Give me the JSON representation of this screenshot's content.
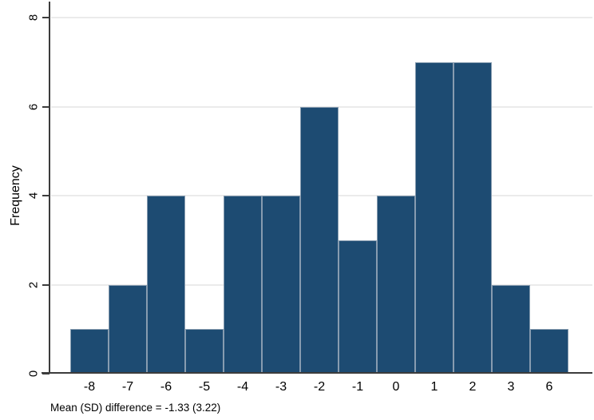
{
  "figure": {
    "ylabel": "Frequency",
    "caption": "Mean (SD) difference = -1.33 (3.22)"
  },
  "chart_data": {
    "type": "bar",
    "subtype": "histogram",
    "title": "",
    "xlabel": "",
    "ylabel": "Frequency",
    "categories": [
      "-8",
      "-7",
      "-6",
      "-5",
      "-4",
      "-3",
      "-2",
      "-1",
      "0",
      "1",
      "2",
      "3",
      "6"
    ],
    "values": [
      1,
      2,
      4,
      1,
      4,
      4,
      6,
      3,
      4,
      7,
      7,
      2,
      1
    ],
    "y_ticks": [
      0,
      2,
      4,
      6,
      8
    ],
    "ylim": [
      0,
      8.4
    ],
    "grid": true,
    "legend": false,
    "annotation": "Mean (SD) difference = -1.33 (3.22)",
    "colors": {
      "bar_fill": "#1d4b72",
      "bar_edge": "#879cb0",
      "gridline": "#ebebeb",
      "axis": "#3c3c3c",
      "text": "#000000",
      "background": "#ffffff"
    }
  }
}
